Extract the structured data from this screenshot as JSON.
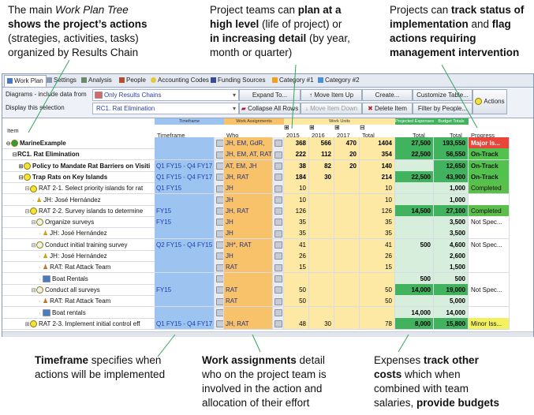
{
  "callouts": {
    "plan_tree": {
      "p1": "The main ",
      "em": "Work Plan Tree",
      "p2": "shows the project’s actions",
      "p3": "(strategies, activities, tasks)",
      "p4": "organized by Results Chain"
    },
    "plan_level": {
      "p1": "Project teams can ",
      "b1": "plan at a",
      "b2": "high level",
      "p2": " (life of project) or",
      "b3": "in increasing detail",
      "p3": " (by year,",
      "p4": "month or quarter)"
    },
    "status": {
      "p1": "Projects can ",
      "b1": "track status of",
      "b2": "implementation",
      "p2": " and ",
      "b3": "flag",
      "b4": "actions requiring",
      "b5": "management intervention"
    },
    "timeframe": {
      "b1": "Timeframe",
      "p1": " specifies when",
      "p2": "actions will be implemented"
    },
    "work_assignments": {
      "b1": "Work assignments",
      "p1": " detail",
      "p2": "who on the project team is",
      "p3": "involved in the action and",
      "p4": "allocation of their effort"
    },
    "expenses": {
      "p1": "Expenses ",
      "b1": "track other",
      "b2": "costs",
      "p2": " which when",
      "p3": "combined with team",
      "p4": "salaries, ",
      "b3": "provide budgets"
    }
  },
  "tabs": [
    {
      "label": "Work Plan",
      "icon": "work-plan-icon",
      "color": "#4a78c8"
    },
    {
      "label": "Settings",
      "icon": "settings-icon",
      "color": "#8a98b0"
    },
    {
      "label": "Analysis",
      "icon": "analysis-icon",
      "color": "#6a8a6a"
    },
    {
      "label": "People",
      "icon": "people-icon",
      "color": "#b05030"
    },
    {
      "label": "Accounting Codes",
      "icon": "accounting-codes-icon",
      "color": "#e8c830"
    },
    {
      "label": "Funding Sources",
      "icon": "funding-sources-icon",
      "color": "#3a4a9a"
    },
    {
      "label": "Category #1",
      "icon": "category-star-icon",
      "color": "#f0a020"
    },
    {
      "label": "Category #2",
      "icon": "category-star-icon",
      "color": "#4a90d8"
    }
  ],
  "toolbar": {
    "diagrams_label": "Diagrams - include data from",
    "diagrams_value": "Only Results Chains",
    "display_label": "Display this selection",
    "display_value": "RC1. Rat Elimination",
    "expand_to": "Expand To...",
    "collapse_all": "Collapse All Rows",
    "move_up": "Move Item Up",
    "move_down": "Move Item Down",
    "create": "Create...",
    "delete_item": "Delete Item",
    "customize_table": "Customize Table...",
    "filter_by_people": "Filter by People...",
    "actions": "Actions"
  },
  "bands": {
    "timeframe": "Timeframe",
    "work_assignments": "Work Assignments",
    "work_units": "Work Units",
    "projected_expenses": "Projected Expenses",
    "budget_totals": "Budget Totals"
  },
  "columns": {
    "item": "Item",
    "timeframe": "Timeframe",
    "who": "Who",
    "y2015": "2015",
    "y2016": "2016",
    "y2017": "2017",
    "wu_total": "Total",
    "exp_total": "Total",
    "bud_total": "Total",
    "progress": "Progress"
  },
  "rows": [
    {
      "item": "MarineExample",
      "level": 0,
      "tog": "⊖",
      "dot": "#2e9c3a",
      "bold": true,
      "tf": "",
      "who": "JH, EM, GdR,",
      "y2015": "368",
      "y2016": "566",
      "y2017": "470",
      "wu_total": "1404",
      "exp": "27,500",
      "bud": "193,550",
      "progress": "Major Is...",
      "status": "major",
      "expdark": true,
      "buddark": true
    },
    {
      "item": "RC1. Rat Elimination",
      "level": 1,
      "tog": "⊟",
      "dot": "",
      "bold": true,
      "tf": "",
      "who": "JH, EM, AT, RAT",
      "y2015": "222",
      "y2016": "112",
      "y2017": "20",
      "wu_total": "354",
      "exp": "22,500",
      "bud": "56,550",
      "progress": "On-Track",
      "status": "on",
      "expdark": true,
      "buddark": true
    },
    {
      "item": "Policy to Mandate Rat Barriers on Visiti",
      "level": 2,
      "tog": "⊞",
      "dot": "#f3e23a",
      "bold": true,
      "tf": "Q1 FY15 - Q4 FY17",
      "who": "AT, EM, JH",
      "y2015": "38",
      "y2016": "82",
      "y2017": "20",
      "wu_total": "140",
      "exp": "",
      "bud": "12,650",
      "progress": "On-Track",
      "status": "on",
      "expdark": false,
      "buddark": true
    },
    {
      "item": "Trap Rats on Key Islands",
      "level": 2,
      "tog": "⊟",
      "dot": "#f3e23a",
      "bold": true,
      "tf": "Q1 FY15 - Q4 FY17",
      "who": "JH, RAT",
      "y2015": "184",
      "y2016": "30",
      "y2017": "",
      "wu_total": "214",
      "exp": "22,500",
      "bud": "43,900",
      "progress": "On-Track",
      "status": "on",
      "expdark": true,
      "buddark": true
    },
    {
      "item": "RAT 2-1. Select priority islands for rat",
      "level": 3,
      "tog": "⊟",
      "dot": "#f3e23a",
      "bold": false,
      "tf": "Q1 FY15",
      "who": "JH",
      "y2015": "10",
      "y2016": "",
      "y2017": "",
      "wu_total": "10",
      "exp": "",
      "bud": "1,000",
      "progress": "Completed",
      "status": "comp",
      "expdark": false,
      "buddark": false
    },
    {
      "item": "JH: José Hernández",
      "level": 4,
      "tog": "",
      "dot": "person",
      "bold": false,
      "tf": "",
      "who": "JH",
      "y2015": "10",
      "y2016": "",
      "y2017": "",
      "wu_total": "10",
      "exp": "",
      "bud": "1,000",
      "progress": "",
      "status": "",
      "expdark": false,
      "buddark": false
    },
    {
      "item": "RAT 2-2. Survey islands to determine",
      "level": 3,
      "tog": "⊟",
      "dot": "#f3e23a",
      "bold": false,
      "tf": "FY15",
      "who": "JH, RAT",
      "y2015": "126",
      "y2016": "",
      "y2017": "",
      "wu_total": "126",
      "exp": "14,500",
      "bud": "27,100",
      "progress": "Completed",
      "status": "comp",
      "expdark": true,
      "buddark": true
    },
    {
      "item": "Organize surveys",
      "level": 4,
      "tog": "⊟",
      "dot": "#f0f0f0",
      "bold": false,
      "tf": "FY15",
      "who": "JH",
      "y2015": "35",
      "y2016": "",
      "y2017": "",
      "wu_total": "35",
      "exp": "",
      "bud": "3,500",
      "progress": "Not Spec...",
      "status": "ns",
      "expdark": false,
      "buddark": false
    },
    {
      "item": "JH: José Hernández",
      "level": 5,
      "tog": "",
      "dot": "person",
      "bold": false,
      "tf": "",
      "who": "JH",
      "y2015": "35",
      "y2016": "",
      "y2017": "",
      "wu_total": "35",
      "exp": "",
      "bud": "3,500",
      "progress": "",
      "status": "",
      "expdark": false,
      "buddark": false
    },
    {
      "item": "Conduct initial training survey",
      "level": 4,
      "tog": "⊟",
      "dot": "#f0f0f0",
      "bold": false,
      "tf": "Q2 FY15 - Q4 FY15",
      "who": "JH*, RAT",
      "y2015": "41",
      "y2016": "",
      "y2017": "",
      "wu_total": "41",
      "exp": "500",
      "bud": "4,600",
      "progress": "Not Spec...",
      "status": "ns",
      "expdark": false,
      "buddark": false
    },
    {
      "item": "JH: José Hernández",
      "level": 5,
      "tog": "",
      "dot": "person",
      "bold": false,
      "tf": "",
      "who": "JH",
      "y2015": "26",
      "y2016": "",
      "y2017": "",
      "wu_total": "26",
      "exp": "",
      "bud": "2,600",
      "progress": "",
      "status": "",
      "expdark": false,
      "buddark": false
    },
    {
      "item": "RAT: Rat Attack Team",
      "level": 5,
      "tog": "",
      "dot": "team",
      "bold": false,
      "tf": "",
      "who": "RAT",
      "y2015": "15",
      "y2016": "",
      "y2017": "",
      "wu_total": "15",
      "exp": "",
      "bud": "1,500",
      "progress": "",
      "status": "",
      "expdark": false,
      "buddark": false
    },
    {
      "item": "Boat Rentals",
      "level": 5,
      "tog": "",
      "dot": "money",
      "bold": false,
      "tf": "",
      "who": "",
      "y2015": "",
      "y2016": "",
      "y2017": "",
      "wu_total": "",
      "exp": "500",
      "bud": "500",
      "progress": "",
      "status": "",
      "expdark": false,
      "buddark": false
    },
    {
      "item": "Conduct all surveys",
      "level": 4,
      "tog": "⊟",
      "dot": "#f0f0f0",
      "bold": false,
      "tf": "FY15",
      "who": "RAT",
      "y2015": "50",
      "y2016": "",
      "y2017": "",
      "wu_total": "50",
      "exp": "14,000",
      "bud": "19,000",
      "progress": "Not Spec...",
      "status": "ns",
      "expdark": true,
      "buddark": true
    },
    {
      "item": "RAT: Rat Attack Team",
      "level": 5,
      "tog": "",
      "dot": "team",
      "bold": false,
      "tf": "",
      "who": "RAT",
      "y2015": "50",
      "y2016": "",
      "y2017": "",
      "wu_total": "50",
      "exp": "",
      "bud": "5,000",
      "progress": "",
      "status": "",
      "expdark": false,
      "buddark": false
    },
    {
      "item": "Boat rentals",
      "level": 5,
      "tog": "",
      "dot": "money",
      "bold": false,
      "tf": "",
      "who": "",
      "y2015": "",
      "y2016": "",
      "y2017": "",
      "wu_total": "",
      "exp": "14,000",
      "bud": "14,000",
      "progress": "",
      "status": "",
      "expdark": false,
      "buddark": false
    },
    {
      "item": "RAT 2-3. Implement initial control eff",
      "level": 3,
      "tog": "⊞",
      "dot": "#f3e23a",
      "bold": false,
      "tf": "Q1 FY15 - Q4 FY17",
      "who": "JH, RAT",
      "y2015": "48",
      "y2016": "30",
      "y2017": "",
      "wu_total": "78",
      "exp": "8,000",
      "bud": "15,800",
      "progress": "Minor Iss...",
      "status": "minor",
      "expdark": true,
      "buddark": true
    }
  ]
}
